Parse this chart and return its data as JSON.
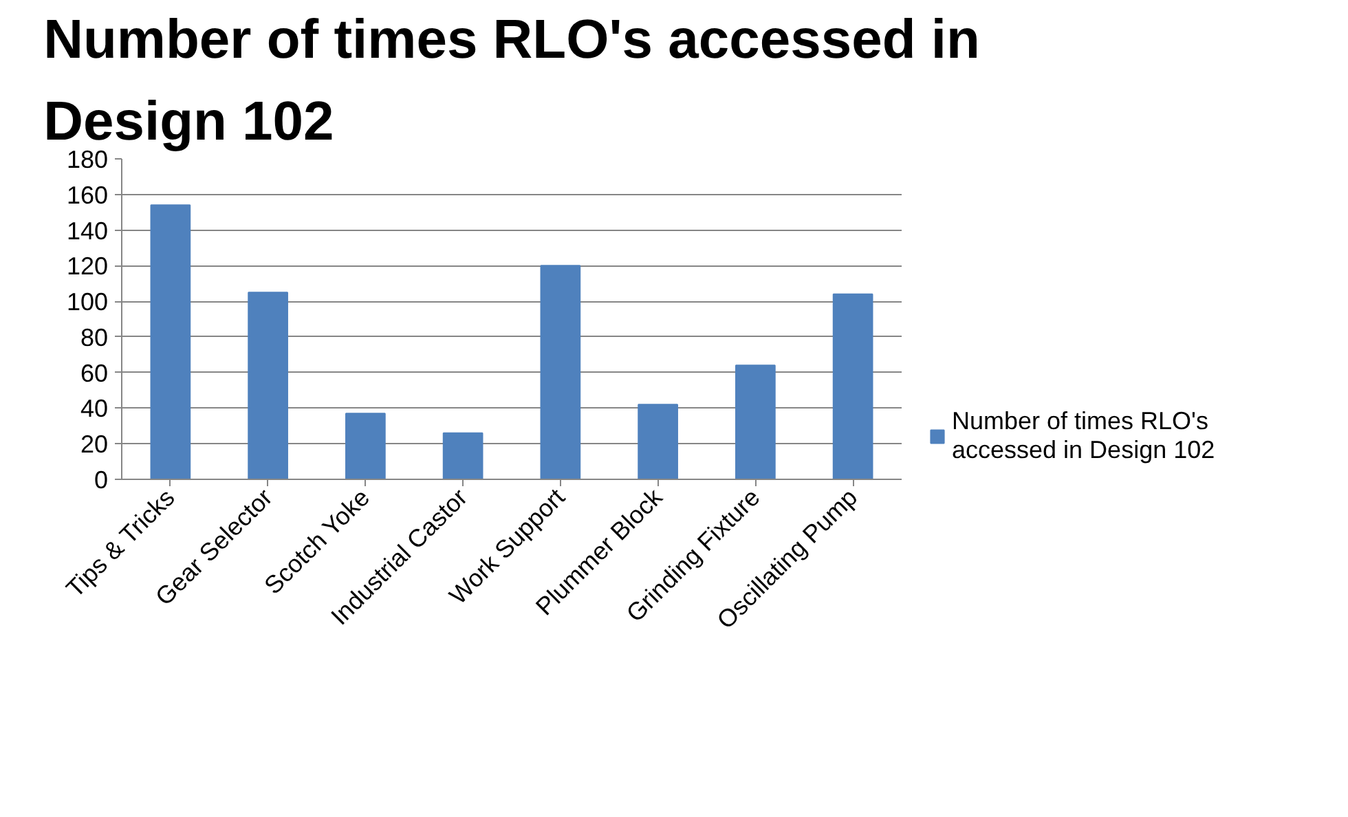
{
  "chart_data": {
    "type": "bar",
    "title": "Number of times RLO's accessed in Design 102",
    "categories": [
      "Tips & Tricks",
      "Gear Selector",
      "Scotch Yoke",
      "Industrial Castor",
      "Work Support",
      "Plummer Block",
      "Grinding Fixture",
      "Oscillating Pump"
    ],
    "series": [
      {
        "name": "Number of times RLO's accessed in Design 102",
        "color": "#4f81bd",
        "values": [
          154,
          105,
          37,
          26,
          120,
          42,
          64,
          104
        ]
      }
    ],
    "ylim": [
      0,
      180
    ],
    "yticks": [
      0,
      20,
      40,
      60,
      80,
      100,
      120,
      140,
      160,
      180
    ],
    "grid": "y",
    "legend": "right"
  }
}
